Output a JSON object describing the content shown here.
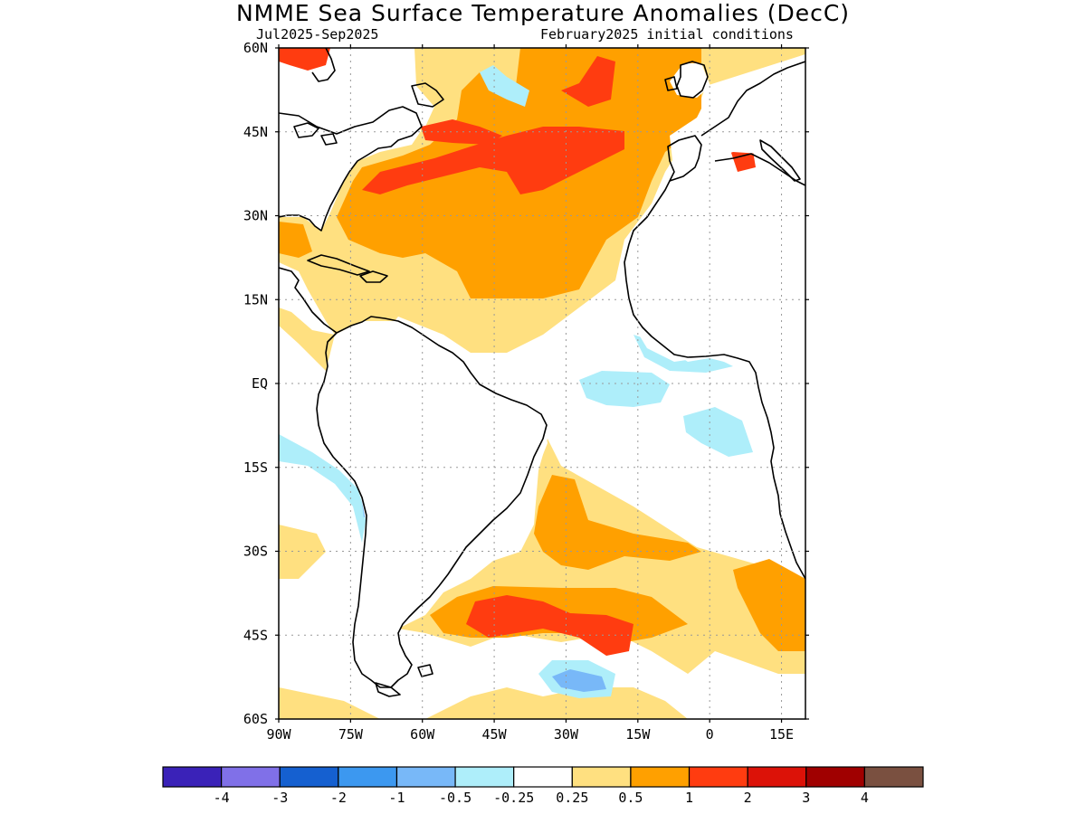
{
  "title": "NMME Sea Surface Temperature Anomalies (DecC)",
  "subtitle_left": "Jul2025-Sep2025",
  "subtitle_right": "February2025 initial conditions",
  "map": {
    "lon_range": [
      -90,
      20
    ],
    "lat_range": [
      -60,
      60
    ],
    "lat_ticks": [
      {
        "value": 60,
        "label": "60N"
      },
      {
        "value": 45,
        "label": "45N"
      },
      {
        "value": 30,
        "label": "30N"
      },
      {
        "value": 15,
        "label": "15N"
      },
      {
        "value": 0,
        "label": "EQ"
      },
      {
        "value": -15,
        "label": "15S"
      },
      {
        "value": -30,
        "label": "30S"
      },
      {
        "value": -45,
        "label": "45S"
      },
      {
        "value": -60,
        "label": "60S"
      }
    ],
    "lon_ticks": [
      {
        "value": -90,
        "label": "90W"
      },
      {
        "value": -75,
        "label": "75W"
      },
      {
        "value": -60,
        "label": "60W"
      },
      {
        "value": -45,
        "label": "45W"
      },
      {
        "value": -30,
        "label": "30W"
      },
      {
        "value": -15,
        "label": "15W"
      },
      {
        "value": 0,
        "label": "0"
      },
      {
        "value": 15,
        "label": "15E"
      }
    ]
  },
  "colorbar": {
    "colors": [
      "#3a22b8",
      "#8070e8",
      "#1560d0",
      "#3c98f0",
      "#78b8f8",
      "#aeeefa",
      "#ffffff",
      "#ffe080",
      "#ffa000",
      "#ff3c10",
      "#dc1208",
      "#a00000",
      "#7a5040"
    ],
    "labels": [
      "-4",
      "-3",
      "-2",
      "-1",
      "-0.5",
      "-0.25",
      "0.25",
      "0.5",
      "1",
      "2",
      "3",
      "4"
    ]
  }
}
